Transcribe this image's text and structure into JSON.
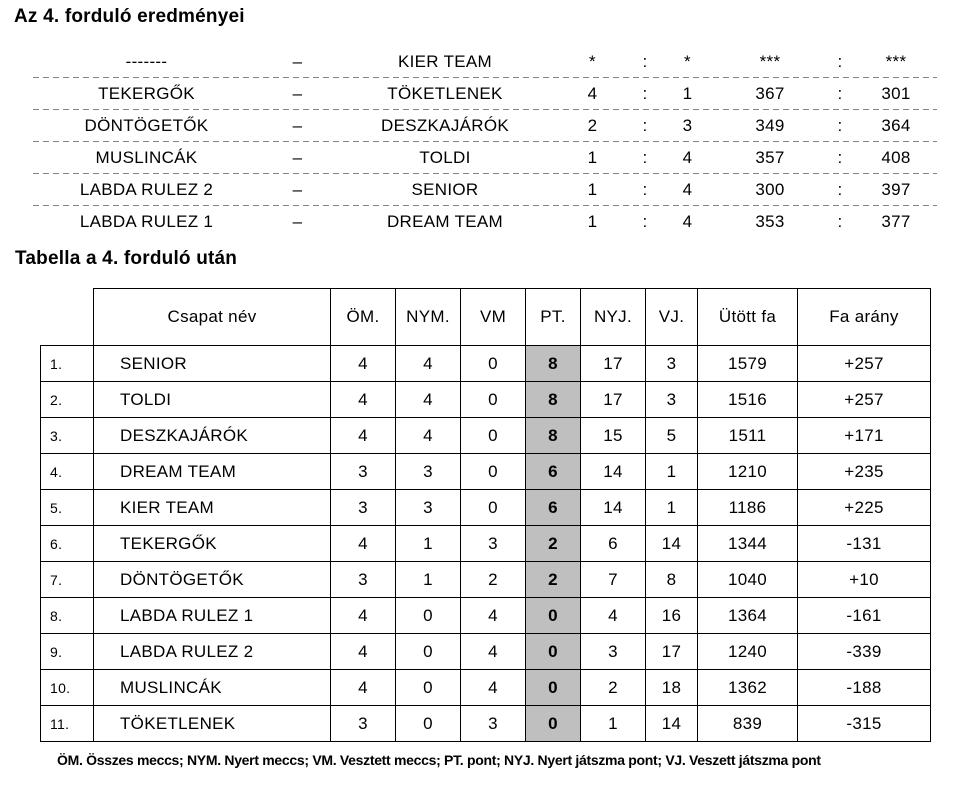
{
  "results": {
    "title": "Az 4. forduló eredményei",
    "dash": "–",
    "colon": ":",
    "rows": [
      {
        "home": "-------",
        "away": "KIER TEAM",
        "sets_home": "*",
        "sets_away": "*",
        "pins_home": "***",
        "pins_away": "***"
      },
      {
        "home": "TEKERGŐK",
        "away": "TÖKETLENEK",
        "sets_home": "4",
        "sets_away": "1",
        "pins_home": "367",
        "pins_away": "301"
      },
      {
        "home": "DÖNTÖGETŐK",
        "away": "DESZKAJÁRÓK",
        "sets_home": "2",
        "sets_away": "3",
        "pins_home": "349",
        "pins_away": "364"
      },
      {
        "home": "MUSLINCÁK",
        "away": "TOLDI",
        "sets_home": "1",
        "sets_away": "4",
        "pins_home": "357",
        "pins_away": "408"
      },
      {
        "home": "LABDA RULEZ 2",
        "away": "SENIOR",
        "sets_home": "1",
        "sets_away": "4",
        "pins_home": "300",
        "pins_away": "397"
      },
      {
        "home": "LABDA RULEZ 1",
        "away": "DREAM TEAM",
        "sets_home": "1",
        "sets_away": "4",
        "pins_home": "353",
        "pins_away": "377"
      }
    ]
  },
  "standings": {
    "title": "Tabella a 4. forduló után",
    "headers": {
      "team": "Csapat név",
      "om": "ÖM.",
      "nym": "NYM.",
      "vm": "VM",
      "pt": "PT.",
      "nyj": "NYJ.",
      "vj": "VJ.",
      "utott_fa": "Ütött fa",
      "fa_arany": "Fa arány"
    },
    "rows": [
      {
        "rank": "1.",
        "team": "SENIOR",
        "om": "4",
        "nym": "4",
        "vm": "0",
        "pt": "8",
        "nyj": "17",
        "vj": "3",
        "utott_fa": "1579",
        "fa_arany": "+257"
      },
      {
        "rank": "2.",
        "team": "TOLDI",
        "om": "4",
        "nym": "4",
        "vm": "0",
        "pt": "8",
        "nyj": "17",
        "vj": "3",
        "utott_fa": "1516",
        "fa_arany": "+257"
      },
      {
        "rank": "3.",
        "team": "DESZKAJÁRÓK",
        "om": "4",
        "nym": "4",
        "vm": "0",
        "pt": "8",
        "nyj": "15",
        "vj": "5",
        "utott_fa": "1511",
        "fa_arany": "+171"
      },
      {
        "rank": "4.",
        "team": "DREAM TEAM",
        "om": "3",
        "nym": "3",
        "vm": "0",
        "pt": "6",
        "nyj": "14",
        "vj": "1",
        "utott_fa": "1210",
        "fa_arany": "+235"
      },
      {
        "rank": "5.",
        "team": "KIER TEAM",
        "om": "3",
        "nym": "3",
        "vm": "0",
        "pt": "6",
        "nyj": "14",
        "vj": "1",
        "utott_fa": "1186",
        "fa_arany": "+225"
      },
      {
        "rank": "6.",
        "team": "TEKERGŐK",
        "om": "4",
        "nym": "1",
        "vm": "3",
        "pt": "2",
        "nyj": "6",
        "vj": "14",
        "utott_fa": "1344",
        "fa_arany": "-131"
      },
      {
        "rank": "7.",
        "team": "DÖNTÖGETŐK",
        "om": "3",
        "nym": "1",
        "vm": "2",
        "pt": "2",
        "nyj": "7",
        "vj": "8",
        "utott_fa": "1040",
        "fa_arany": "+10"
      },
      {
        "rank": "8.",
        "team": "LABDA RULEZ 1",
        "om": "4",
        "nym": "0",
        "vm": "4",
        "pt": "0",
        "nyj": "4",
        "vj": "16",
        "utott_fa": "1364",
        "fa_arany": "-161"
      },
      {
        "rank": "9.",
        "team": "LABDA RULEZ 2",
        "om": "4",
        "nym": "0",
        "vm": "4",
        "pt": "0",
        "nyj": "3",
        "vj": "17",
        "utott_fa": "1240",
        "fa_arany": "-339"
      },
      {
        "rank": "10.",
        "team": "MUSLINCÁK",
        "om": "4",
        "nym": "0",
        "vm": "4",
        "pt": "0",
        "nyj": "2",
        "vj": "18",
        "utott_fa": "1362",
        "fa_arany": "-188"
      },
      {
        "rank": "11.",
        "team": "TÖKETLENEK",
        "om": "3",
        "nym": "0",
        "vm": "3",
        "pt": "0",
        "nyj": "1",
        "vj": "14",
        "utott_fa": "839",
        "fa_arany": "-315"
      }
    ]
  },
  "footnote": "ÖM. Összes meccs; NYM. Nyert meccs; VM. Vesztett meccs; PT. pont; NYJ. Nyert játszma pont; VJ. Veszett játszma pont",
  "colors": {
    "pt_highlight": "#bfbfbf",
    "separator": "#848484",
    "border": "#000000"
  }
}
